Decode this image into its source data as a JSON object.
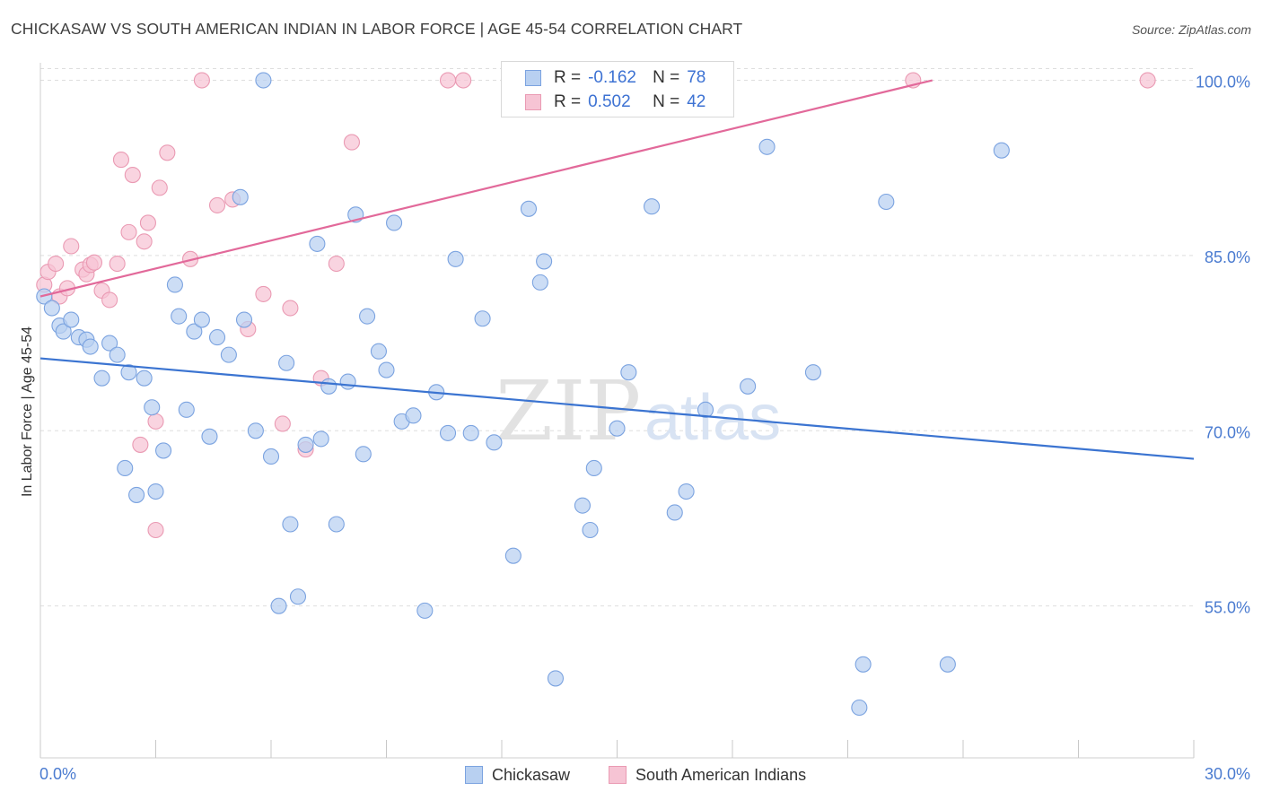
{
  "title": "CHICKASAW VS SOUTH AMERICAN INDIAN IN LABOR FORCE | AGE 45-54 CORRELATION CHART",
  "source": "Source: ZipAtlas.com",
  "watermark": {
    "zip": "ZIP",
    "atlas": "atlas"
  },
  "colors": {
    "blue_fill": "#b8d0f1",
    "blue_stroke": "#7ba3e0",
    "blue_line": "#3b74d1",
    "pink_fill": "#f6c4d4",
    "pink_stroke": "#ea9ab3",
    "pink_line": "#e2699a",
    "tick_text": "#4a7bd0",
    "grid": "#dedede"
  },
  "legend": {
    "rows": [
      {
        "r_label": "R =",
        "r_value": "-0.162",
        "n_label": "N =",
        "n_value": "78",
        "series": "blue"
      },
      {
        "r_label": "R =",
        "r_value": "0.502",
        "n_label": "N =",
        "n_value": "42",
        "series": "pink"
      }
    ]
  },
  "bottom_legend": [
    {
      "label": "Chickasaw",
      "series": "blue"
    },
    {
      "label": "South American Indians",
      "series": "pink"
    }
  ],
  "chart_data": {
    "type": "scatter",
    "title": "CHICKASAW VS SOUTH AMERICAN INDIAN IN LABOR FORCE | AGE 45-54 CORRELATION CHART",
    "xlabel": "",
    "ylabel": "In Labor Force | Age 45-54",
    "xlim": [
      0.0,
      30.0
    ],
    "ylim": [
      42.0,
      101.5
    ],
    "x_tick_labels": [
      "0.0%",
      "30.0%"
    ],
    "y_ticks": [
      55.0,
      70.0,
      85.0,
      100.0
    ],
    "y_tick_labels": [
      "55.0%",
      "70.0%",
      "85.0%",
      "100.0%"
    ],
    "grid": true,
    "legend_position": "top-center",
    "series": [
      {
        "name": "Chickasaw",
        "color": "blue",
        "trend": {
          "x": [
            0.0,
            30.0
          ],
          "y": [
            76.2,
            67.6
          ]
        },
        "points": [
          [
            0.1,
            81.5
          ],
          [
            0.3,
            80.5
          ],
          [
            0.5,
            79.0
          ],
          [
            0.6,
            78.5
          ],
          [
            0.8,
            79.5
          ],
          [
            1.0,
            78.0
          ],
          [
            1.2,
            77.8
          ],
          [
            1.3,
            77.2
          ],
          [
            1.6,
            74.5
          ],
          [
            1.8,
            77.5
          ],
          [
            2.0,
            76.5
          ],
          [
            2.2,
            66.8
          ],
          [
            2.3,
            75.0
          ],
          [
            2.5,
            64.5
          ],
          [
            2.7,
            74.5
          ],
          [
            2.9,
            72.0
          ],
          [
            3.0,
            64.8
          ],
          [
            3.2,
            68.3
          ],
          [
            3.5,
            82.5
          ],
          [
            3.6,
            79.8
          ],
          [
            3.8,
            71.8
          ],
          [
            4.0,
            78.5
          ],
          [
            4.2,
            79.5
          ],
          [
            4.4,
            69.5
          ],
          [
            4.6,
            78.0
          ],
          [
            4.9,
            76.5
          ],
          [
            5.2,
            90.0
          ],
          [
            5.3,
            79.5
          ],
          [
            5.6,
            70.0
          ],
          [
            5.8,
            100.0
          ],
          [
            6.0,
            67.8
          ],
          [
            6.2,
            55.0
          ],
          [
            6.4,
            75.8
          ],
          [
            6.5,
            62.0
          ],
          [
            6.7,
            55.8
          ],
          [
            6.9,
            68.8
          ],
          [
            7.2,
            86.0
          ],
          [
            7.3,
            69.3
          ],
          [
            7.5,
            73.8
          ],
          [
            7.7,
            62.0
          ],
          [
            8.0,
            74.2
          ],
          [
            8.2,
            88.5
          ],
          [
            8.4,
            68.0
          ],
          [
            8.5,
            79.8
          ],
          [
            8.8,
            76.8
          ],
          [
            9.0,
            75.2
          ],
          [
            9.2,
            87.8
          ],
          [
            9.4,
            70.8
          ],
          [
            9.7,
            71.3
          ],
          [
            10.0,
            54.6
          ],
          [
            10.3,
            73.3
          ],
          [
            10.6,
            69.8
          ],
          [
            10.8,
            84.7
          ],
          [
            11.2,
            69.8
          ],
          [
            11.5,
            79.6
          ],
          [
            11.8,
            69.0
          ],
          [
            12.3,
            59.3
          ],
          [
            12.7,
            89.0
          ],
          [
            13.0,
            82.7
          ],
          [
            13.1,
            84.5
          ],
          [
            13.4,
            48.8
          ],
          [
            14.1,
            63.6
          ],
          [
            14.3,
            61.5
          ],
          [
            14.4,
            66.8
          ],
          [
            15.0,
            70.2
          ],
          [
            15.3,
            75.0
          ],
          [
            15.9,
            89.2
          ],
          [
            16.5,
            63.0
          ],
          [
            16.8,
            64.8
          ],
          [
            17.3,
            71.8
          ],
          [
            18.4,
            73.8
          ],
          [
            18.9,
            94.3
          ],
          [
            20.1,
            75.0
          ],
          [
            21.3,
            46.3
          ],
          [
            21.4,
            50.0
          ],
          [
            22.0,
            89.6
          ],
          [
            23.6,
            50.0
          ],
          [
            25.0,
            94.0
          ]
        ]
      },
      {
        "name": "South American Indians",
        "color": "pink",
        "trend": {
          "x": [
            0.0,
            23.2
          ],
          "y": [
            81.5,
            100.0
          ]
        },
        "points": [
          [
            0.1,
            82.5
          ],
          [
            0.2,
            83.6
          ],
          [
            0.4,
            84.3
          ],
          [
            0.5,
            81.5
          ],
          [
            0.7,
            82.2
          ],
          [
            0.8,
            85.8
          ],
          [
            1.1,
            83.8
          ],
          [
            1.2,
            83.4
          ],
          [
            1.3,
            84.2
          ],
          [
            1.4,
            84.4
          ],
          [
            1.6,
            82.0
          ],
          [
            1.8,
            81.2
          ],
          [
            2.0,
            84.3
          ],
          [
            2.1,
            93.2
          ],
          [
            2.3,
            87.0
          ],
          [
            2.4,
            91.9
          ],
          [
            2.6,
            68.8
          ],
          [
            2.7,
            86.2
          ],
          [
            2.8,
            87.8
          ],
          [
            3.0,
            70.8
          ],
          [
            3.0,
            61.5
          ],
          [
            3.1,
            90.8
          ],
          [
            3.3,
            93.8
          ],
          [
            3.9,
            84.7
          ],
          [
            4.2,
            100.0
          ],
          [
            4.6,
            89.3
          ],
          [
            5.0,
            89.8
          ],
          [
            5.4,
            78.7
          ],
          [
            5.8,
            81.7
          ],
          [
            6.3,
            70.6
          ],
          [
            6.5,
            80.5
          ],
          [
            6.9,
            68.4
          ],
          [
            7.3,
            74.5
          ],
          [
            7.7,
            84.3
          ],
          [
            8.1,
            94.7
          ],
          [
            10.6,
            100.0
          ],
          [
            11.0,
            100.0
          ],
          [
            13.5,
            100.0
          ],
          [
            14.2,
            100.0
          ],
          [
            15.2,
            100.0
          ],
          [
            22.7,
            100.0
          ],
          [
            28.8,
            100.0
          ]
        ]
      }
    ]
  }
}
